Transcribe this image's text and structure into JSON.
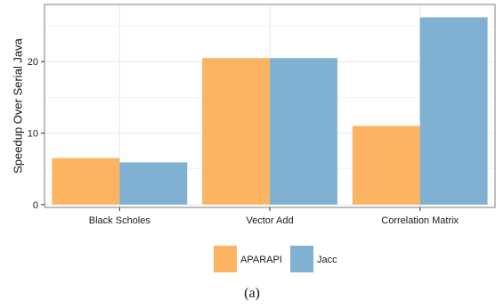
{
  "chart_data": {
    "type": "bar",
    "title": "",
    "xlabel": "",
    "ylabel": "Speedup Over Serial Java",
    "categories": [
      "Black Scholes",
      "Vector Add",
      "Correlation Matrix"
    ],
    "series": [
      {
        "name": "APARAPI",
        "values": [
          6.5,
          20.5,
          11.0
        ]
      },
      {
        "name": "Jacc",
        "values": [
          5.9,
          20.5,
          26.2
        ]
      }
    ],
    "ylim": [
      -0.4,
      28
    ],
    "yticks": [
      0,
      10,
      20
    ],
    "grid": true,
    "legend_position": "bottom",
    "colors": {
      "APARAPI": "#fdb462",
      "Jacc": "#80b1d3",
      "grid": "#ebebeb",
      "border": "#7f7f7f"
    }
  },
  "caption": "(a)"
}
